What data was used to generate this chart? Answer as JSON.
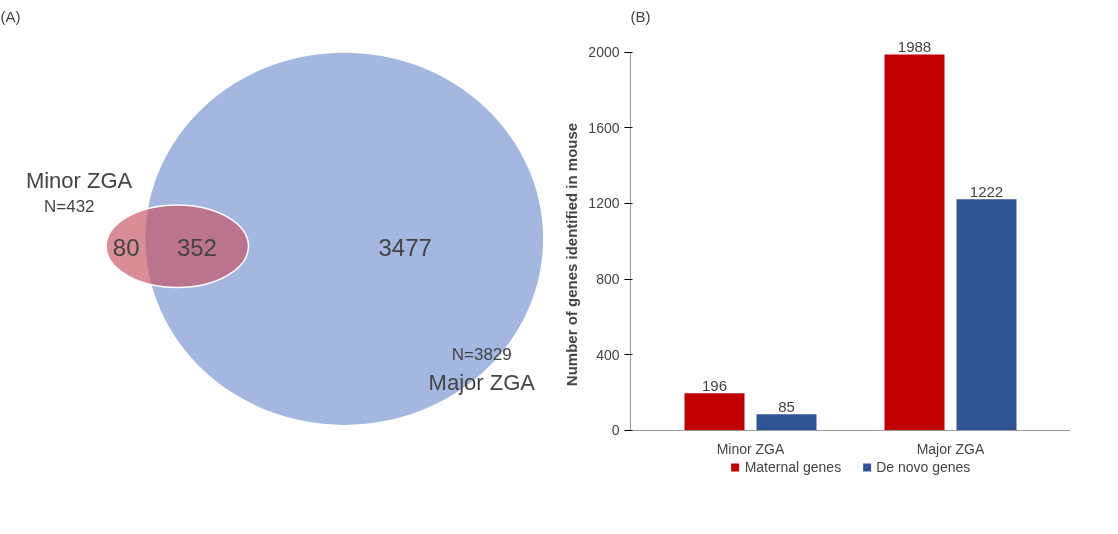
{
  "chart_data": [
    {
      "type": "other",
      "title": "(A)",
      "categories": [
        null,
        null,
        null
      ],
      "values": [
        80,
        352,
        3477
      ],
      "data_labels": true,
      "annotations": [
        "Minor ZGA",
        "N=432",
        "N=3829",
        "Major ZGA"
      ]
    },
    {
      "type": "bar",
      "title": "(B)",
      "categories": [
        "Minor ZGA",
        "Major ZGA"
      ],
      "series": [
        {
          "name": "Maternal genes",
          "color": "#c00000",
          "values": [
            196,
            1988
          ]
        },
        {
          "name": "De novo genes",
          "color": "#2f5597",
          "values": [
            85,
            1222
          ]
        }
      ],
      "ylabel": "Number of genes identified in mouse",
      "ylim": [
        0,
        2000
      ],
      "yticks": [
        0,
        400,
        800,
        1200,
        1600,
        2000
      ],
      "data_labels": true,
      "legend": "bottom",
      "grid": false
    }
  ]
}
